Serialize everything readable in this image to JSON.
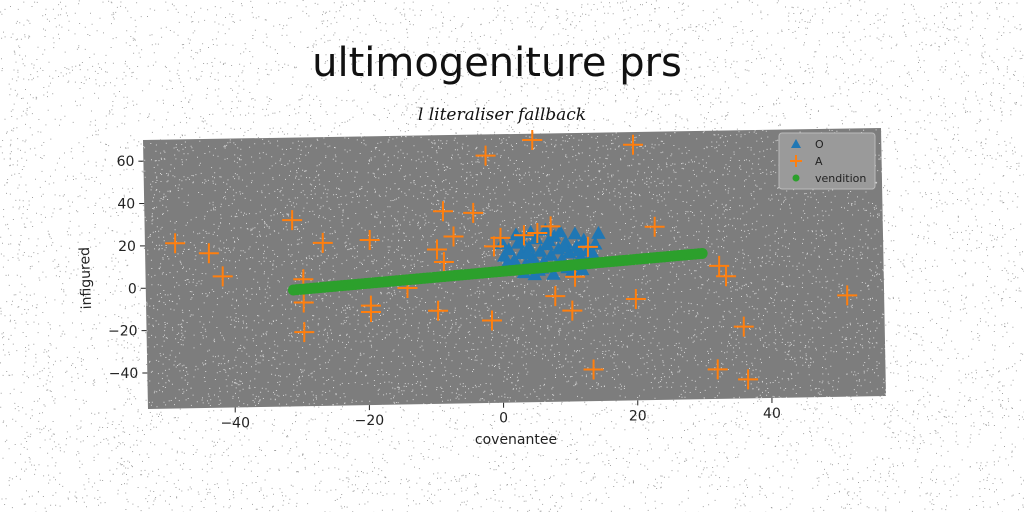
{
  "chart_data": {
    "type": "scatter",
    "title": "ultimogeniture prs",
    "subtitle": "l literaliser fallback",
    "xlabel": "covenantee",
    "ylabel": "infigured",
    "xlim": [
      -53,
      57
    ],
    "ylim": [
      -57,
      70
    ],
    "xticks": [
      -40,
      -20,
      0,
      20,
      40
    ],
    "yticks": [
      -40,
      -20,
      0,
      20,
      40,
      60
    ],
    "legend_position": "top-right",
    "grid": false,
    "series": [
      {
        "name": "O",
        "marker": "triangle",
        "color": "#1f77b4",
        "points": [
          [
            0.5,
            12
          ],
          [
            1.2,
            15
          ],
          [
            2.0,
            10
          ],
          [
            2.6,
            18
          ],
          [
            3.1,
            13
          ],
          [
            3.7,
            8
          ],
          [
            4.2,
            16
          ],
          [
            4.8,
            11
          ],
          [
            5.3,
            20
          ],
          [
            5.9,
            14
          ],
          [
            6.4,
            9
          ],
          [
            6.9,
            17
          ],
          [
            7.5,
            12
          ],
          [
            8.0,
            21
          ],
          [
            8.6,
            15
          ],
          [
            9.1,
            10
          ],
          [
            9.7,
            18
          ],
          [
            10.2,
            13
          ],
          [
            10.8,
            7
          ],
          [
            11.3,
            16
          ],
          [
            11.9,
            11
          ],
          [
            12.4,
            19
          ],
          [
            13.0,
            14
          ],
          [
            13.5,
            9
          ],
          [
            14.1,
            17
          ],
          [
            14.6,
            22
          ],
          [
            1.5,
            6
          ],
          [
            3.4,
            4
          ],
          [
            5.6,
            5
          ],
          [
            7.8,
            3
          ],
          [
            9.9,
            6
          ],
          [
            12.1,
            5
          ],
          [
            2.3,
            22
          ],
          [
            4.5,
            23
          ],
          [
            6.7,
            24
          ],
          [
            8.9,
            23
          ],
          [
            11.1,
            22
          ],
          [
            1.0,
            9
          ],
          [
            6.1,
            6
          ],
          [
            10.5,
            4
          ],
          [
            13.8,
            12
          ],
          [
            0.2,
            18
          ],
          [
            5.0,
            3
          ],
          [
            8.3,
            7
          ],
          [
            12.7,
            8
          ],
          [
            3.0,
            20
          ],
          [
            7.2,
            19
          ],
          [
            9.4,
            16
          ],
          [
            4.0,
            13
          ],
          [
            11.6,
            14
          ]
        ]
      },
      {
        "name": "A",
        "marker": "plus",
        "color": "#ff7f0e",
        "points": [
          [
            -48.5,
            21
          ],
          [
            -43.5,
            16
          ],
          [
            -41.5,
            5
          ],
          [
            -31,
            31
          ],
          [
            -29.5,
            3
          ],
          [
            -29.5,
            -8
          ],
          [
            -29.5,
            -22
          ],
          [
            -26.5,
            20
          ],
          [
            -19.5,
            21
          ],
          [
            -19.5,
            -13
          ],
          [
            -19.5,
            -10
          ],
          [
            -14,
            -2
          ],
          [
            -9.5,
            -13
          ],
          [
            -9.5,
            16
          ],
          [
            -8.5,
            34
          ],
          [
            -8.5,
            10
          ],
          [
            -7,
            22
          ],
          [
            -4,
            33
          ],
          [
            -2,
            60
          ],
          [
            -1.5,
            -18
          ],
          [
            -1,
            17
          ],
          [
            0,
            21
          ],
          [
            3.5,
            22
          ],
          [
            5,
            67
          ],
          [
            5.5,
            23
          ],
          [
            7.5,
            26
          ],
          [
            8,
            -7
          ],
          [
            10.5,
            -14
          ],
          [
            11,
            2
          ],
          [
            13,
            16
          ],
          [
            13.5,
            -42
          ],
          [
            20,
            64
          ],
          [
            20,
            -9
          ],
          [
            23,
            25
          ],
          [
            32,
            -43
          ],
          [
            32.5,
            6
          ],
          [
            33.5,
            1
          ],
          [
            36,
            -23
          ],
          [
            36.5,
            -48
          ],
          [
            51.5,
            -9
          ]
        ]
      },
      {
        "name": "vendition",
        "marker": "circle",
        "color": "#2ca02c",
        "line_from": [
          -31,
          -2
        ],
        "line_to": [
          30,
          12
        ],
        "n_points": 120
      }
    ]
  },
  "colors": {
    "plot_bg": "#7d7d7d",
    "page_bg": "#ffffff"
  }
}
